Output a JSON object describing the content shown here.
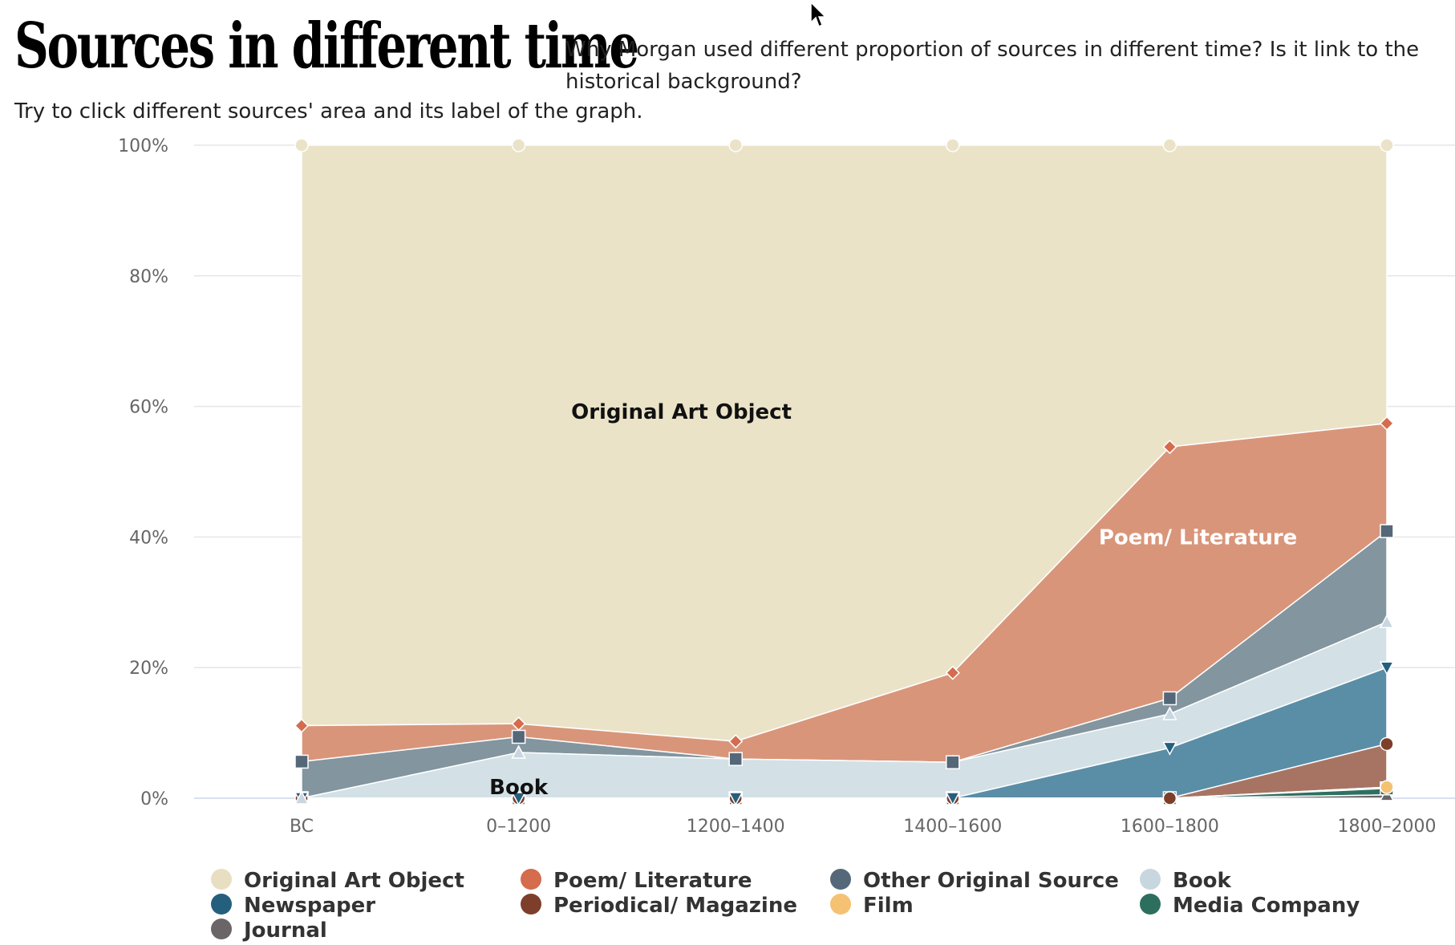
{
  "header": {
    "title": "Sources in different time",
    "question": "Why Morgan used different proportion of sources in different time? Is it link to the historical background?",
    "instruction": "Try to click different sources' area and its label of the graph."
  },
  "chart_data": {
    "type": "area",
    "stacking": "percent",
    "categories": [
      "BC",
      "0–1200",
      "1200–1400",
      "1400–1600",
      "1600–1800",
      "1800–2000"
    ],
    "y_ticks": [
      "0%",
      "20%",
      "40%",
      "60%",
      "80%",
      "100%"
    ],
    "ylim": [
      0,
      100
    ],
    "grid": true,
    "legend_position": "bottom",
    "series": [
      {
        "name": "Original Art Object",
        "color": "#ebe3c8",
        "marker": "circle",
        "values": [
          88.9,
          88.6,
          91.3,
          80.8,
          46.2,
          42.6
        ]
      },
      {
        "name": "Poem/ Literature",
        "color": "#d9957a",
        "marker": "diamond",
        "values": [
          5.5,
          2.0,
          2.7,
          13.7,
          38.5,
          16.5
        ]
      },
      {
        "name": "Other Original Source",
        "color": "#83959f",
        "marker": "square",
        "values": [
          5.6,
          2.4,
          0.0,
          0.0,
          2.4,
          13.9
        ]
      },
      {
        "name": "Book",
        "color": "#d3e0e6",
        "marker": "triangle",
        "values": [
          0.0,
          7.0,
          6.0,
          5.5,
          5.2,
          7.0
        ]
      },
      {
        "name": "Newspaper",
        "color": "#5a8ea6",
        "marker": "triangle-down",
        "values": [
          0.0,
          0.0,
          0.0,
          0.0,
          7.7,
          11.7
        ]
      },
      {
        "name": "Periodical/ Magazine",
        "color": "#a77463",
        "marker": "circle",
        "values": [
          0.0,
          0.0,
          0.0,
          0.0,
          0.0,
          6.6
        ]
      },
      {
        "name": "Film",
        "color": "#f3c577",
        "marker": "circle",
        "values": [
          0.0,
          0.0,
          0.0,
          0.0,
          0.0,
          0.2
        ]
      },
      {
        "name": "Media Company",
        "color": "#2e7060",
        "marker": "square",
        "values": [
          0.0,
          0.0,
          0.0,
          0.0,
          0.0,
          1.0
        ]
      },
      {
        "name": "Journal",
        "color": "#6b6568",
        "marker": "triangle",
        "values": [
          0.0,
          0.0,
          0.0,
          0.0,
          0.0,
          0.5
        ]
      }
    ],
    "legend_swatch_colors": [
      "#e8dfc2",
      "#d46c4d",
      "#55687a",
      "#c8d6df",
      "#255f7e",
      "#7d3f2c",
      "#f4c272",
      "#2d6f5f",
      "#6b6568"
    ],
    "series_labels": [
      {
        "text": "Original Art Object",
        "series": "Original Art Object",
        "color": "#111111"
      },
      {
        "text": "Poem/ Literature",
        "series": "Poem/ Literature",
        "color": "#ffffff"
      },
      {
        "text": "Book",
        "series": "Book",
        "color": "#111111"
      }
    ]
  }
}
